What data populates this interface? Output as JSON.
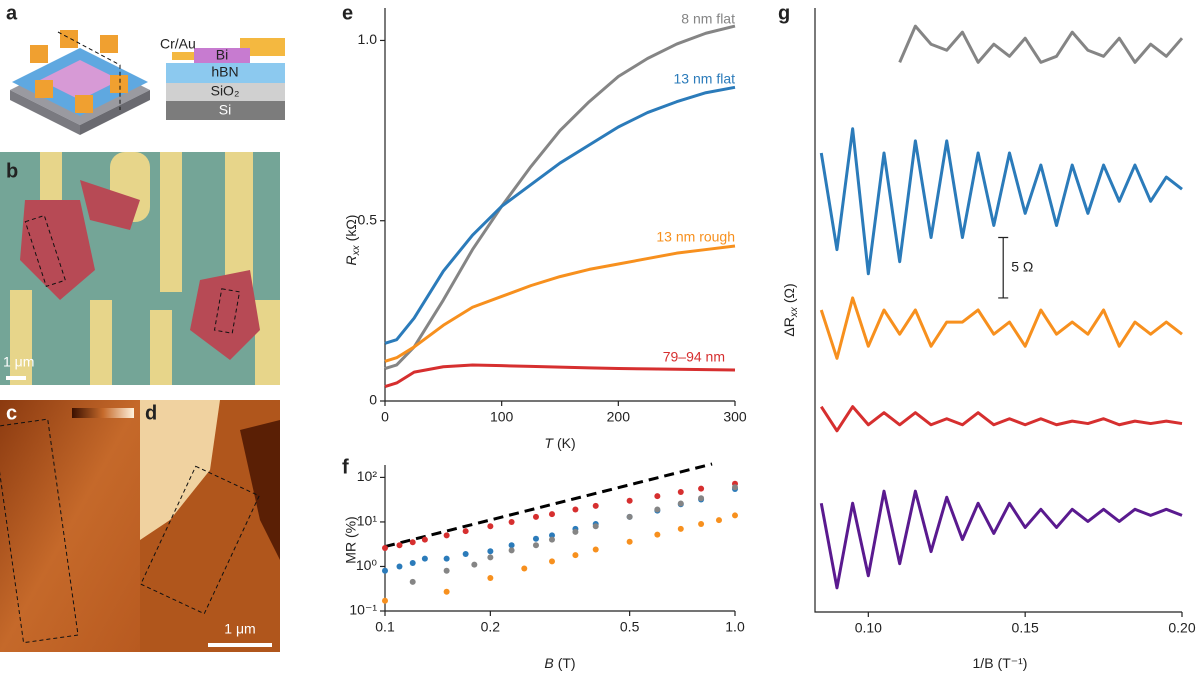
{
  "panel_labels": [
    "a",
    "b",
    "c",
    "d",
    "e",
    "f",
    "g"
  ],
  "schematic": {
    "layers": [
      "Cr/Au",
      "Bi",
      "hBN",
      "SiO₂",
      "Si"
    ]
  },
  "scale_bars": [
    "1 μm",
    "1 μm"
  ],
  "chart_data": [
    {
      "type": "line",
      "xlabel": {
        "var": "T",
        "unit": "(K)"
      },
      "ylabel": {
        "main": "R",
        "sub": "xx",
        "unit": "(kΩ)"
      },
      "xlim": [
        0,
        300
      ],
      "xticks": [
        0,
        100,
        200,
        300
      ],
      "ylim": [
        0,
        1.09
      ],
      "yticks": [
        0,
        0.5,
        {
          "value": 1,
          "label": "1.0"
        }
      ],
      "x": [
        0,
        10,
        25,
        50,
        75,
        100,
        125,
        150,
        175,
        200,
        225,
        250,
        275,
        300
      ],
      "series": [
        {
          "name": "8 nm flat",
          "color": "#858585",
          "values": [
            0.09,
            0.1,
            0.15,
            0.28,
            0.42,
            0.54,
            0.65,
            0.75,
            0.83,
            0.9,
            0.95,
            0.99,
            1.02,
            1.04
          ]
        },
        {
          "name": "13 nm flat",
          "color": "#2b7bba",
          "values": [
            0.16,
            0.17,
            0.23,
            0.36,
            0.46,
            0.54,
            0.6,
            0.66,
            0.71,
            0.76,
            0.8,
            0.83,
            0.855,
            0.87
          ]
        },
        {
          "name": "13 nm rough",
          "color": "#f7901e",
          "values": [
            0.11,
            0.12,
            0.15,
            0.21,
            0.26,
            0.29,
            0.32,
            0.345,
            0.365,
            0.38,
            0.395,
            0.41,
            0.42,
            0.43
          ]
        },
        {
          "name": "79–94 nm",
          "color": "#d62f2f",
          "values": [
            0.04,
            0.05,
            0.08,
            0.095,
            0.1,
            0.098,
            0.096,
            0.094,
            0.092,
            0.09,
            0.089,
            0.088,
            0.087,
            0.086
          ]
        }
      ]
    },
    {
      "type": "scatter",
      "log_x": true,
      "log_y": true,
      "xlabel": {
        "var": "B",
        "unit": "(T)"
      },
      "ylabel": {
        "main": "MR (%)"
      },
      "xlim": [
        0.1,
        1
      ],
      "xticks": [
        0.1,
        0.2,
        0.5,
        {
          "value": 1,
          "label": "1.0"
        }
      ],
      "ylim": [
        0.1,
        190
      ],
      "yticks": [
        {
          "value": 0.1,
          "label": "10⁻¹"
        },
        {
          "value": 1,
          "label": "10⁰"
        },
        {
          "value": 10,
          "label": "10¹"
        },
        {
          "value": 100,
          "label": "10²"
        }
      ],
      "series": [
        {
          "color": "#000000",
          "style": "dashed",
          "x": [
            0.1,
            0.86
          ],
          "values": [
            2.8,
            200
          ]
        },
        {
          "color": "#d62f2f",
          "x": [
            0.1,
            0.11,
            0.12,
            0.13,
            0.15,
            0.17,
            0.2,
            0.23,
            0.27,
            0.3,
            0.35,
            0.4,
            0.5,
            0.6,
            0.7,
            0.8,
            1
          ],
          "values": [
            2.6,
            3,
            3.5,
            4,
            5,
            6.2,
            8,
            10,
            13,
            15,
            19,
            23,
            30,
            38,
            47,
            56,
            72
          ]
        },
        {
          "color": "#2b7bba",
          "x": [
            0.1,
            0.11,
            0.12,
            0.13,
            0.15,
            0.17,
            0.2,
            0.23,
            0.27,
            0.3,
            0.35,
            0.4,
            0.5,
            0.6,
            0.7,
            0.8,
            1
          ],
          "values": [
            0.8,
            1,
            1.2,
            1.5,
            1.5,
            1.9,
            2.2,
            3,
            4.2,
            5,
            7,
            9,
            13,
            18,
            25,
            32,
            55
          ]
        },
        {
          "color": "#858585",
          "x": [
            0.12,
            0.15,
            0.18,
            0.2,
            0.23,
            0.27,
            0.3,
            0.35,
            0.4,
            0.5,
            0.6,
            0.7,
            0.8,
            1
          ],
          "values": [
            0.45,
            0.8,
            1.1,
            1.6,
            2.3,
            3,
            4,
            6,
            8,
            13,
            19,
            26,
            34,
            60
          ]
        },
        {
          "color": "#f7901e",
          "x": [
            0.1,
            0.15,
            0.2,
            0.25,
            0.3,
            0.35,
            0.4,
            0.5,
            0.6,
            0.7,
            0.8,
            0.9,
            1
          ],
          "values": [
            0.17,
            0.27,
            0.55,
            0.9,
            1.3,
            1.8,
            2.4,
            3.6,
            5.2,
            7,
            9,
            11,
            14
          ]
        }
      ]
    },
    {
      "type": "line",
      "xlabel": {
        "var": "1/B",
        "unit": "(T⁻¹)"
      },
      "ylabel": {
        "main": "ΔR",
        "sub": "xx",
        "unit": "(Ω)"
      },
      "xlim": [
        0.083,
        0.2
      ],
      "xticks": [
        {
          "value": 0.1,
          "label": "0.10"
        },
        0.15,
        {
          "value": 0.2,
          "label": "0.20"
        }
      ],
      "ylim": [
        0,
        50
      ],
      "scale_bar": {
        "value": 5,
        "label": "5 Ω"
      },
      "series": [
        {
          "color": "#858585",
          "x": [
            0.11,
            0.115,
            0.12,
            0.125,
            0.13,
            0.135,
            0.14,
            0.145,
            0.15,
            0.155,
            0.16,
            0.165,
            0.17,
            0.175,
            0.18,
            0.185,
            0.19,
            0.195,
            0.2
          ],
          "values": [
            45.5,
            48.5,
            47,
            46.5,
            48,
            45.5,
            47,
            46,
            47.5,
            45.5,
            46,
            48,
            46.5,
            46,
            47.5,
            45.5,
            47,
            46,
            47.5
          ]
        },
        {
          "color": "#2b7bba",
          "x": [
            0.085,
            0.09,
            0.095,
            0.1,
            0.105,
            0.11,
            0.115,
            0.12,
            0.125,
            0.13,
            0.135,
            0.14,
            0.145,
            0.15,
            0.155,
            0.16,
            0.165,
            0.17,
            0.175,
            0.18,
            0.185,
            0.19,
            0.195,
            0.2
          ],
          "values": [
            38,
            30,
            40,
            28,
            38,
            29,
            39,
            31,
            39,
            31,
            38,
            32,
            38,
            33,
            37,
            32,
            37,
            33,
            37,
            34,
            37,
            34,
            36,
            35
          ]
        },
        {
          "color": "#f7901e",
          "x": [
            0.085,
            0.09,
            0.095,
            0.1,
            0.105,
            0.11,
            0.115,
            0.12,
            0.125,
            0.13,
            0.135,
            0.14,
            0.145,
            0.15,
            0.155,
            0.16,
            0.165,
            0.17,
            0.175,
            0.18,
            0.185,
            0.19,
            0.195,
            0.2
          ],
          "values": [
            25,
            21,
            26,
            22,
            25,
            23,
            25,
            22,
            24,
            24,
            25,
            23,
            24,
            22,
            25,
            23,
            24,
            23,
            25,
            22,
            24,
            23,
            24,
            23
          ]
        },
        {
          "color": "#d62f2f",
          "x": [
            0.085,
            0.09,
            0.095,
            0.1,
            0.105,
            0.11,
            0.115,
            0.12,
            0.125,
            0.13,
            0.135,
            0.14,
            0.145,
            0.15,
            0.155,
            0.16,
            0.165,
            0.17,
            0.175,
            0.18,
            0.185,
            0.19,
            0.195,
            0.2
          ],
          "values": [
            17,
            15,
            17,
            15.5,
            16.5,
            15.5,
            16.5,
            15.5,
            16,
            15.5,
            16.5,
            15.5,
            16,
            15.5,
            16,
            15.5,
            15.8,
            15.6,
            16,
            15.5,
            15.8,
            15.6,
            15.8,
            15.6
          ]
        },
        {
          "color": "#5a1a8f",
          "x": [
            0.085,
            0.09,
            0.095,
            0.1,
            0.105,
            0.11,
            0.115,
            0.12,
            0.125,
            0.13,
            0.135,
            0.14,
            0.145,
            0.15,
            0.155,
            0.16,
            0.165,
            0.17,
            0.175,
            0.18,
            0.185,
            0.19,
            0.195,
            0.2
          ],
          "values": [
            9,
            2,
            9,
            3,
            10,
            4,
            10,
            5,
            9.5,
            6,
            9,
            6.5,
            9,
            7,
            8.5,
            7,
            8.5,
            7.5,
            8.5,
            7.5,
            8.5,
            8,
            8.5,
            8
          ]
        }
      ]
    }
  ]
}
